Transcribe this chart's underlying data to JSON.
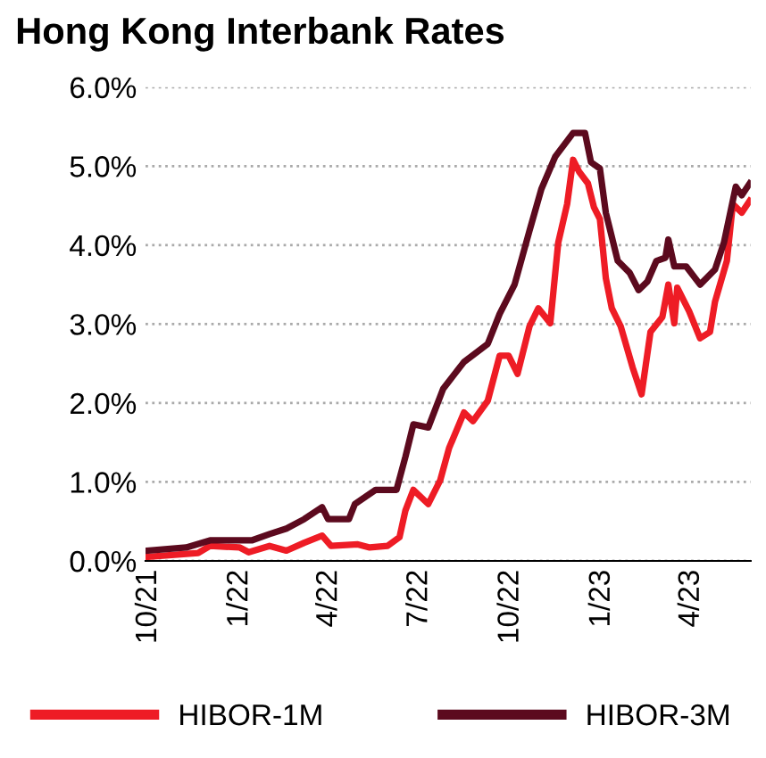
{
  "chart_data": {
    "type": "line",
    "title": "Hong Kong Interbank Rates",
    "xlim": [
      "2021-09-28",
      "2023-05-31"
    ],
    "xticks": [
      {
        "value": "2021-10-01",
        "label": "10/21"
      },
      {
        "value": "2022-01-01",
        "label": "1/22"
      },
      {
        "value": "2022-04-01",
        "label": "4/22"
      },
      {
        "value": "2022-07-01",
        "label": "7/22"
      },
      {
        "value": "2022-10-01",
        "label": "10/22"
      },
      {
        "value": "2023-01-01",
        "label": "1/23"
      },
      {
        "value": "2023-04-01",
        "label": "4/23"
      }
    ],
    "ylim": [
      0,
      6
    ],
    "yticks": [
      {
        "value": 0,
        "label": "0.0%"
      },
      {
        "value": 1,
        "label": "1.0%"
      },
      {
        "value": 2,
        "label": "2.0%"
      },
      {
        "value": 3,
        "label": "3.0%"
      },
      {
        "value": 4,
        "label": "4.0%"
      },
      {
        "value": 5,
        "label": "5.0%"
      },
      {
        "value": 6,
        "label": "6.0%"
      }
    ],
    "grid": "y",
    "legend": "bottom",
    "marker": "none",
    "line_style": "solid",
    "series": [
      {
        "name": "HIBOR-1M",
        "color": "#ee1c25",
        "x": [
          "2021-09-29",
          "2021-11-20",
          "2021-12-02",
          "2022-01-01",
          "2022-01-10",
          "2022-01-31",
          "2022-02-17",
          "2022-03-07",
          "2022-03-25",
          "2022-04-03",
          "2022-04-30",
          "2022-05-12",
          "2022-05-30",
          "2022-06-11",
          "2022-06-17",
          "2022-06-25",
          "2022-07-10",
          "2022-07-22",
          "2022-07-31",
          "2022-08-15",
          "2022-08-24",
          "2022-09-08",
          "2022-09-20",
          "2022-09-29",
          "2022-10-08",
          "2022-10-20",
          "2022-10-29",
          "2022-11-10",
          "2022-11-18",
          "2022-11-27",
          "2022-12-03",
          "2022-12-09",
          "2022-12-18",
          "2022-12-24",
          "2022-12-30",
          "2023-01-05",
          "2023-01-11",
          "2023-01-20",
          "2023-02-01",
          "2023-02-10",
          "2023-02-19",
          "2023-03-03",
          "2023-03-09",
          "2023-03-15",
          "2023-03-18",
          "2023-03-30",
          "2023-04-10",
          "2023-04-20",
          "2023-04-25",
          "2023-05-07",
          "2023-05-13",
          "2023-05-22",
          "2023-05-30"
        ],
        "values": [
          0.05,
          0.1,
          0.19,
          0.17,
          0.11,
          0.19,
          0.13,
          0.23,
          0.32,
          0.19,
          0.21,
          0.17,
          0.19,
          0.3,
          0.64,
          0.9,
          0.72,
          1.02,
          1.43,
          1.88,
          1.77,
          2.03,
          2.6,
          2.6,
          2.37,
          2.97,
          3.2,
          3.01,
          4.03,
          4.52,
          5.08,
          4.93,
          4.78,
          4.48,
          4.33,
          3.58,
          3.2,
          2.97,
          2.45,
          2.11,
          2.9,
          3.09,
          3.5,
          3.01,
          3.46,
          3.16,
          2.82,
          2.9,
          3.28,
          3.8,
          4.52,
          4.41,
          4.56
        ]
      },
      {
        "name": "HIBOR-3M",
        "color": "#5c0a1e",
        "x": [
          "2021-09-29",
          "2021-11-08",
          "2021-12-02",
          "2022-01-13",
          "2022-01-31",
          "2022-02-17",
          "2022-03-07",
          "2022-03-25",
          "2022-03-31",
          "2022-04-21",
          "2022-04-27",
          "2022-05-18",
          "2022-06-08",
          "2022-06-17",
          "2022-06-25",
          "2022-07-10",
          "2022-07-25",
          "2022-08-15",
          "2022-09-08",
          "2022-09-20",
          "2022-10-05",
          "2022-10-20",
          "2022-11-01",
          "2022-11-15",
          "2022-12-03",
          "2022-12-15",
          "2022-12-21",
          "2022-12-30",
          "2023-01-05",
          "2023-01-17",
          "2023-01-29",
          "2023-02-07",
          "2023-02-16",
          "2023-02-25",
          "2023-03-06",
          "2023-03-09",
          "2023-03-15",
          "2023-03-27",
          "2023-04-10",
          "2023-04-25",
          "2023-05-04",
          "2023-05-16",
          "2023-05-22",
          "2023-05-30"
        ],
        "values": [
          0.13,
          0.17,
          0.26,
          0.26,
          0.34,
          0.41,
          0.53,
          0.68,
          0.53,
          0.53,
          0.72,
          0.9,
          0.9,
          1.32,
          1.73,
          1.69,
          2.18,
          2.52,
          2.75,
          3.13,
          3.5,
          4.18,
          4.71,
          5.12,
          5.42,
          5.42,
          5.05,
          4.97,
          4.41,
          3.8,
          3.65,
          3.43,
          3.54,
          3.8,
          3.84,
          4.07,
          3.73,
          3.73,
          3.5,
          3.69,
          4.03,
          4.74,
          4.63,
          4.78
        ]
      }
    ]
  }
}
